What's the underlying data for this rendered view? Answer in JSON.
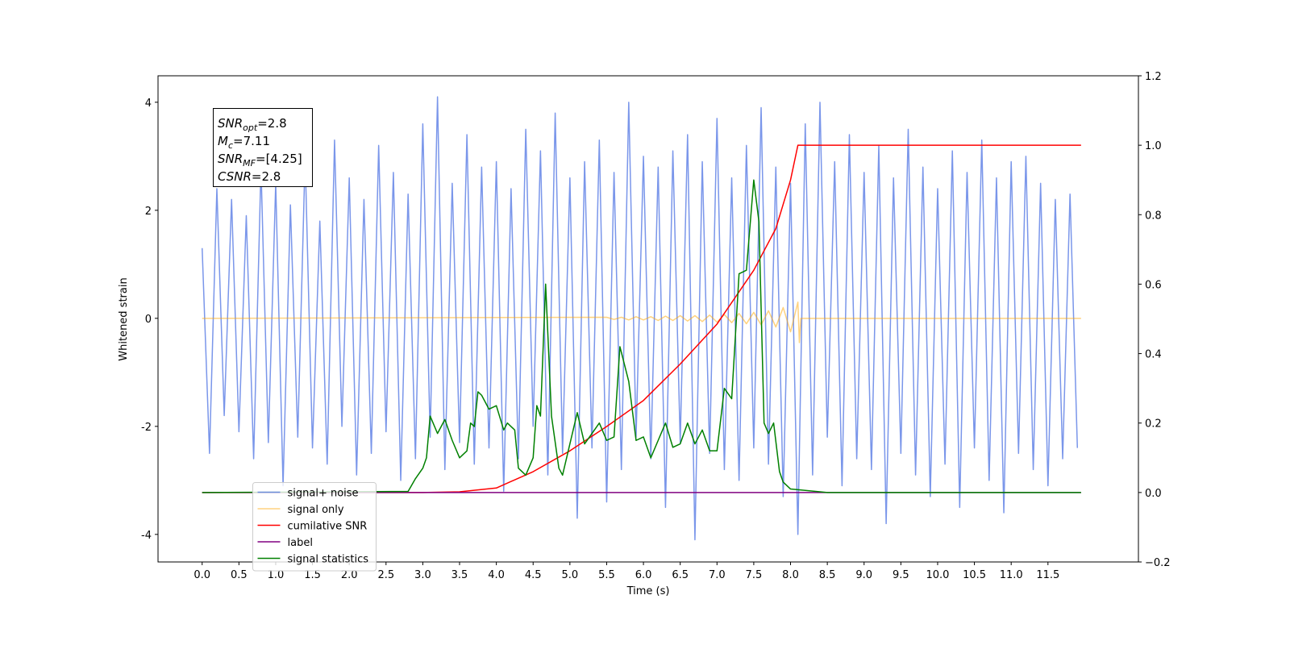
{
  "chart_data": {
    "type": "line",
    "xlabel": "Time (s)",
    "ylabel": "Whitened strain",
    "annotation": [
      [
        "SNR",
        "opt",
        "=2.8"
      ],
      [
        "M",
        "c",
        "=7.11"
      ],
      [
        "SNR",
        "MF",
        "=[4.25]"
      ],
      [
        "CSNR",
        "=2.8"
      ]
    ],
    "xlim": [
      -0.6,
      12.73
    ],
    "ylim": [
      -4.51,
      4.49
    ],
    "y2lim": [
      -0.2,
      1.2
    ],
    "xticks": [
      {
        "value": 0,
        "label": "0.0"
      },
      0.5,
      {
        "value": 1,
        "label": "1.0"
      },
      1.5,
      {
        "value": 2,
        "label": "2.0"
      },
      2.5,
      {
        "value": 3,
        "label": "3.0"
      },
      3.5,
      {
        "value": 4,
        "label": "4.0"
      },
      4.5,
      {
        "value": 5,
        "label": "5.0"
      },
      5.5,
      {
        "value": 6,
        "label": "6.0"
      },
      6.5,
      {
        "value": 7,
        "label": "7.0"
      },
      7.5,
      {
        "value": 8,
        "label": "8.0"
      },
      8.5,
      {
        "value": 9,
        "label": "9.0"
      },
      9.5,
      {
        "value": 10,
        "label": "10.0"
      },
      10.5,
      {
        "value": 11,
        "label": "11.0"
      },
      11.5
    ],
    "yticks": [
      -4,
      -2,
      0,
      2,
      4
    ],
    "y2ticks": [
      {
        "value": -0.2,
        "label": "−0.2"
      },
      {
        "value": 0,
        "label": "0.0"
      },
      0.2,
      0.4,
      0.6,
      0.8,
      {
        "value": 1,
        "label": "1.0"
      },
      1.2
    ],
    "legend": "lower left",
    "series": [
      {
        "name": "signal+ noise",
        "color": "#4169e1",
        "alpha": 0.7,
        "axis": "y",
        "x": [
          0.0,
          0.1,
          0.2,
          0.3,
          0.4,
          0.5,
          0.6,
          0.7,
          0.8,
          0.9,
          1.0,
          1.1,
          1.2,
          1.3,
          1.4,
          1.5,
          1.6,
          1.7,
          1.8,
          1.9,
          2.0,
          2.1,
          2.2,
          2.3,
          2.4,
          2.5,
          2.6,
          2.7,
          2.8,
          2.9,
          3.0,
          3.1,
          3.2,
          3.3,
          3.4,
          3.5,
          3.6,
          3.7,
          3.8,
          3.9,
          4.0,
          4.1,
          4.2,
          4.3,
          4.4,
          4.5,
          4.6,
          4.7,
          4.8,
          4.9,
          5.0,
          5.1,
          5.2,
          5.3,
          5.4,
          5.5,
          5.6,
          5.7,
          5.8,
          5.9,
          6.0,
          6.1,
          6.2,
          6.3,
          6.4,
          6.5,
          6.6,
          6.7,
          6.8,
          6.9,
          7.0,
          7.1,
          7.2,
          7.3,
          7.4,
          7.5,
          7.6,
          7.7,
          7.8,
          7.9,
          8.0,
          8.1,
          8.2,
          8.3,
          8.4,
          8.5,
          8.6,
          8.7,
          8.8,
          8.9,
          9.0,
          9.1,
          9.2,
          9.3,
          9.4,
          9.5,
          9.6,
          9.7,
          9.8,
          9.9,
          10.0,
          10.1,
          10.2,
          10.3,
          10.4,
          10.5,
          10.6,
          10.7,
          10.8,
          10.9,
          11.0,
          11.1,
          11.2,
          11.3,
          11.4,
          11.5,
          11.6,
          11.7,
          11.8,
          11.9
        ],
        "values": [
          1.3,
          -2.5,
          2.4,
          -1.8,
          2.2,
          -2.1,
          1.9,
          -2.6,
          2.8,
          -2.3,
          2.5,
          -3.1,
          2.1,
          -2.2,
          3.0,
          -2.4,
          1.8,
          -2.7,
          3.3,
          -2.0,
          2.6,
          -2.9,
          2.2,
          -2.5,
          3.2,
          -2.1,
          2.7,
          -3.0,
          2.3,
          -2.6,
          3.6,
          -2.2,
          4.1,
          -2.8,
          2.5,
          -2.3,
          3.4,
          -2.7,
          2.8,
          -2.4,
          2.9,
          -3.2,
          2.4,
          -2.6,
          3.5,
          -2.0,
          3.1,
          -2.9,
          3.8,
          -2.5,
          2.6,
          -3.7,
          2.9,
          -2.4,
          3.3,
          -3.4,
          2.7,
          -2.8,
          4.0,
          -2.2,
          3.0,
          -2.6,
          2.8,
          -3.5,
          3.1,
          -2.3,
          3.4,
          -4.1,
          2.9,
          -2.5,
          3.7,
          -2.8,
          2.6,
          -3.0,
          3.2,
          -2.4,
          3.9,
          -2.7,
          2.8,
          -3.3,
          2.5,
          -4.0,
          3.6,
          -2.9,
          4.0,
          -2.2,
          2.9,
          -3.1,
          3.4,
          -2.6,
          2.7,
          -2.8,
          3.2,
          -3.8,
          2.6,
          -2.5,
          3.5,
          -2.9,
          2.8,
          -3.3,
          2.4,
          -2.7,
          3.1,
          -3.5,
          2.7,
          -2.4,
          3.3,
          -3.0,
          2.6,
          -3.6,
          2.9,
          -2.5,
          3.0,
          -2.8,
          2.5,
          -3.1,
          2.2,
          -2.6,
          2.3,
          -2.4
        ]
      },
      {
        "name": "signal only",
        "color": "#ffa500",
        "alpha": 0.5,
        "axis": "y",
        "x": [
          0,
          5.5,
          5.6,
          5.7,
          5.8,
          5.9,
          6.0,
          6.1,
          6.2,
          6.3,
          6.4,
          6.5,
          6.6,
          6.7,
          6.8,
          6.9,
          7.0,
          7.1,
          7.2,
          7.3,
          7.4,
          7.5,
          7.6,
          7.7,
          7.8,
          7.9,
          8.0,
          8.1,
          8.12,
          8.14,
          11.95
        ],
        "values": [
          0,
          0.02,
          -0.02,
          0.02,
          -0.03,
          0.03,
          -0.03,
          0.03,
          -0.04,
          0.04,
          -0.04,
          0.05,
          -0.05,
          0.05,
          -0.06,
          0.06,
          -0.07,
          0.07,
          -0.08,
          0.09,
          -0.1,
          0.11,
          -0.12,
          0.14,
          -0.16,
          0.2,
          -0.25,
          0.3,
          -0.45,
          0,
          0
        ]
      },
      {
        "name": "cumilative SNR",
        "color": "#ff0000",
        "alpha": 1,
        "axis": "y2",
        "x": [
          0,
          3,
          3.5,
          4,
          4.5,
          5,
          5.5,
          6,
          6.5,
          7,
          7.5,
          7.8,
          8.0,
          8.1,
          8.12,
          11.95
        ],
        "values": [
          0,
          0,
          0.002,
          0.013,
          0.06,
          0.12,
          0.19,
          0.265,
          0.37,
          0.485,
          0.64,
          0.76,
          0.9,
          1.0,
          1.0,
          1.0
        ]
      },
      {
        "name": "label",
        "color": "#800080",
        "alpha": 1,
        "axis": "y2",
        "x": [
          0,
          11.95
        ],
        "values": [
          0,
          0
        ]
      },
      {
        "name": "signal statistics",
        "color": "#008000",
        "alpha": 1,
        "axis": "y2",
        "x": [
          0,
          2.8,
          2.9,
          3.0,
          3.05,
          3.1,
          3.2,
          3.3,
          3.4,
          3.5,
          3.6,
          3.65,
          3.7,
          3.75,
          3.8,
          3.9,
          4.0,
          4.1,
          4.15,
          4.25,
          4.3,
          4.4,
          4.5,
          4.55,
          4.6,
          4.67,
          4.75,
          4.85,
          4.9,
          5.0,
          5.1,
          5.2,
          5.3,
          5.4,
          5.5,
          5.6,
          5.68,
          5.8,
          5.9,
          6.0,
          6.1,
          6.2,
          6.3,
          6.4,
          6.5,
          6.6,
          6.7,
          6.8,
          6.9,
          7.0,
          7.1,
          7.2,
          7.3,
          7.4,
          7.5,
          7.57,
          7.64,
          7.7,
          7.77,
          7.85,
          7.9,
          8.0,
          8.5,
          11.95
        ],
        "values": [
          0,
          0.003,
          0.04,
          0.07,
          0.1,
          0.22,
          0.17,
          0.21,
          0.15,
          0.1,
          0.12,
          0.2,
          0.19,
          0.29,
          0.28,
          0.24,
          0.25,
          0.18,
          0.2,
          0.18,
          0.07,
          0.05,
          0.1,
          0.25,
          0.22,
          0.6,
          0.22,
          0.07,
          0.05,
          0.14,
          0.23,
          0.14,
          0.17,
          0.2,
          0.15,
          0.16,
          0.42,
          0.32,
          0.15,
          0.16,
          0.1,
          0.15,
          0.2,
          0.13,
          0.14,
          0.2,
          0.14,
          0.18,
          0.12,
          0.12,
          0.3,
          0.27,
          0.63,
          0.64,
          0.9,
          0.78,
          0.2,
          0.17,
          0.2,
          0.06,
          0.03,
          0.01,
          0,
          0
        ]
      }
    ]
  }
}
